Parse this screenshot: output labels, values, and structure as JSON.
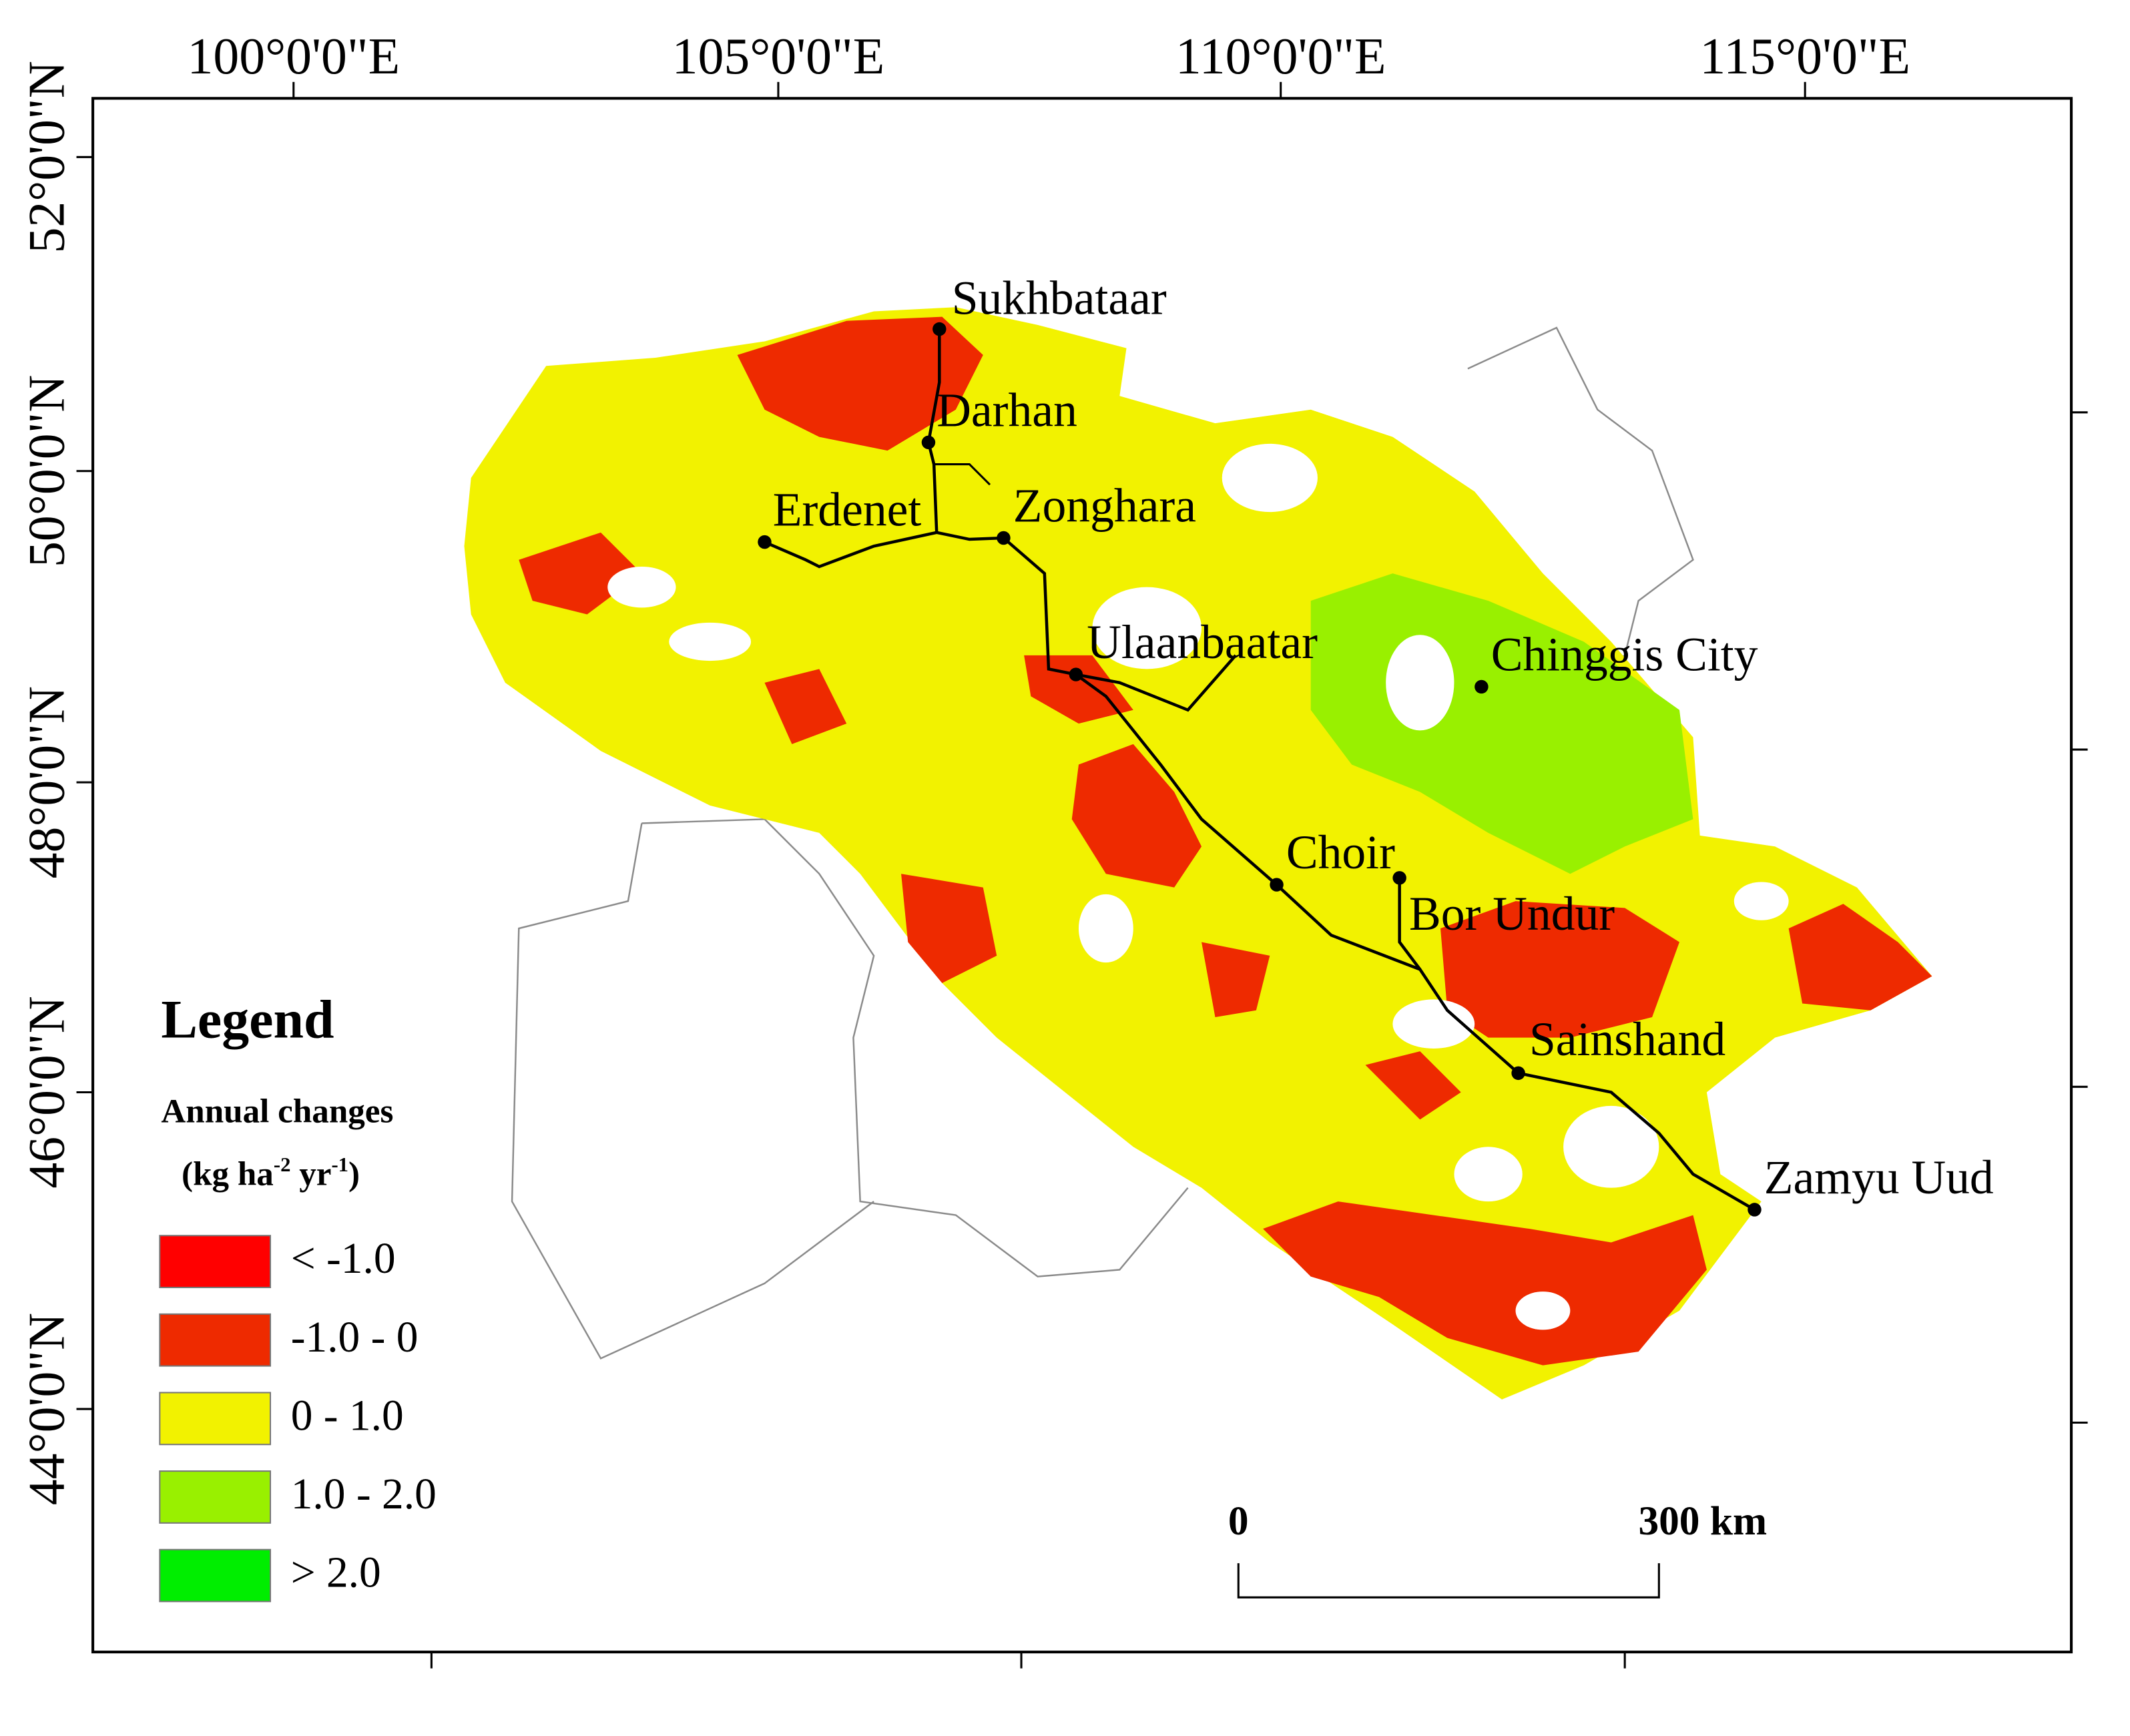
{
  "map": {
    "lon_labels": [
      "100°0'0\"E",
      "105°0'0\"E",
      "110°0'0\"E",
      "115°0'0\"E"
    ],
    "lat_labels": [
      "52°0'0\"N",
      "50°0'0\"N",
      "48°0'0\"N",
      "46°0'0\"N",
      "44°0'0\"N"
    ],
    "cities": [
      "Sukhbataar",
      "Darhan",
      "Erdenet",
      "Zonghara",
      "Ulaanbaatar",
      "Chinggis City",
      "Choir",
      "Bor Undur",
      "Sainshand",
      "Zamyu Uud"
    ],
    "legend": {
      "title": "Legend",
      "subtitle": "Annual changes",
      "unit_parts": [
        "(kg ha",
        "-2",
        " yr",
        "-1",
        ")"
      ],
      "items": [
        {
          "label": "< -1.0",
          "color": "#ff0000"
        },
        {
          "label": "-1.0 - 0",
          "color": "#ee2a00"
        },
        {
          "label": "0 - 1.0",
          "color": "#f2f200"
        },
        {
          "label": "1.0 - 2.0",
          "color": "#99f000"
        },
        {
          "label": "> 2.0",
          "color": "#00ee00"
        }
      ]
    },
    "scale_bar": [
      "0",
      "300 km"
    ]
  }
}
